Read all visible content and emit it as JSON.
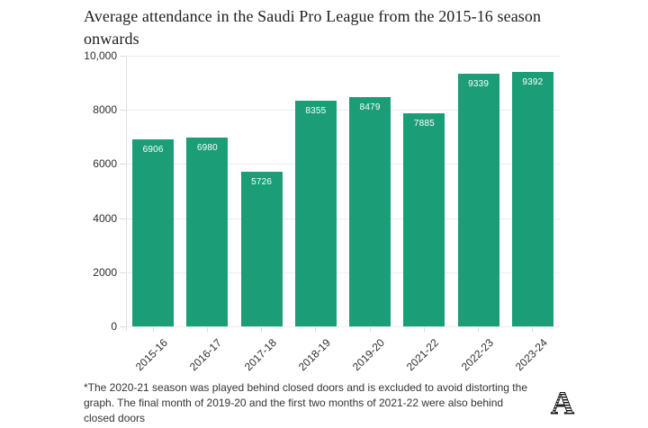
{
  "title": "Average attendance in the Saudi Pro League from the 2015-16 season onwards",
  "footnote": "*The 2020-21 season was played behind closed doors and is excluded to avoid distorting the graph. The final month of 2019-20 and the first two months of 2021-22 were also behind closed doors",
  "logo_letter": "A",
  "colors": {
    "bar": "#1b9e77",
    "grid": "#ececec",
    "tick": "#dcdcdc",
    "axis": "#e0e0e0",
    "title_text": "#1d1d1d",
    "axis_label_text": "#2e2e2e",
    "value_label_text": "#ffffff",
    "footnote_text": "#333333",
    "logo_ink": "#141414"
  },
  "chart_data": {
    "type": "bar",
    "categories": [
      "2015-16",
      "2016-17",
      "2017-18",
      "2018-19",
      "2019-20",
      "2021-22",
      "2022-23",
      "2023-24"
    ],
    "values": [
      6906,
      6980,
      5726,
      8355,
      8479,
      7885,
      9339,
      9392
    ],
    "title": "Average attendance in the Saudi Pro League from the 2015-16 season onwards",
    "xlabel": "",
    "ylabel": "",
    "ylim": [
      0,
      10000
    ],
    "yticks": [
      0,
      2000,
      4000,
      6000,
      8000,
      10000
    ],
    "ytick_labels": [
      "0",
      "2000",
      "4000",
      "6000",
      "8000",
      "10,000"
    ],
    "grid": true,
    "legend": false,
    "bar_value_labels": true,
    "x_label_rotation_deg": -45,
    "note": "2020-21 season omitted from categories"
  }
}
